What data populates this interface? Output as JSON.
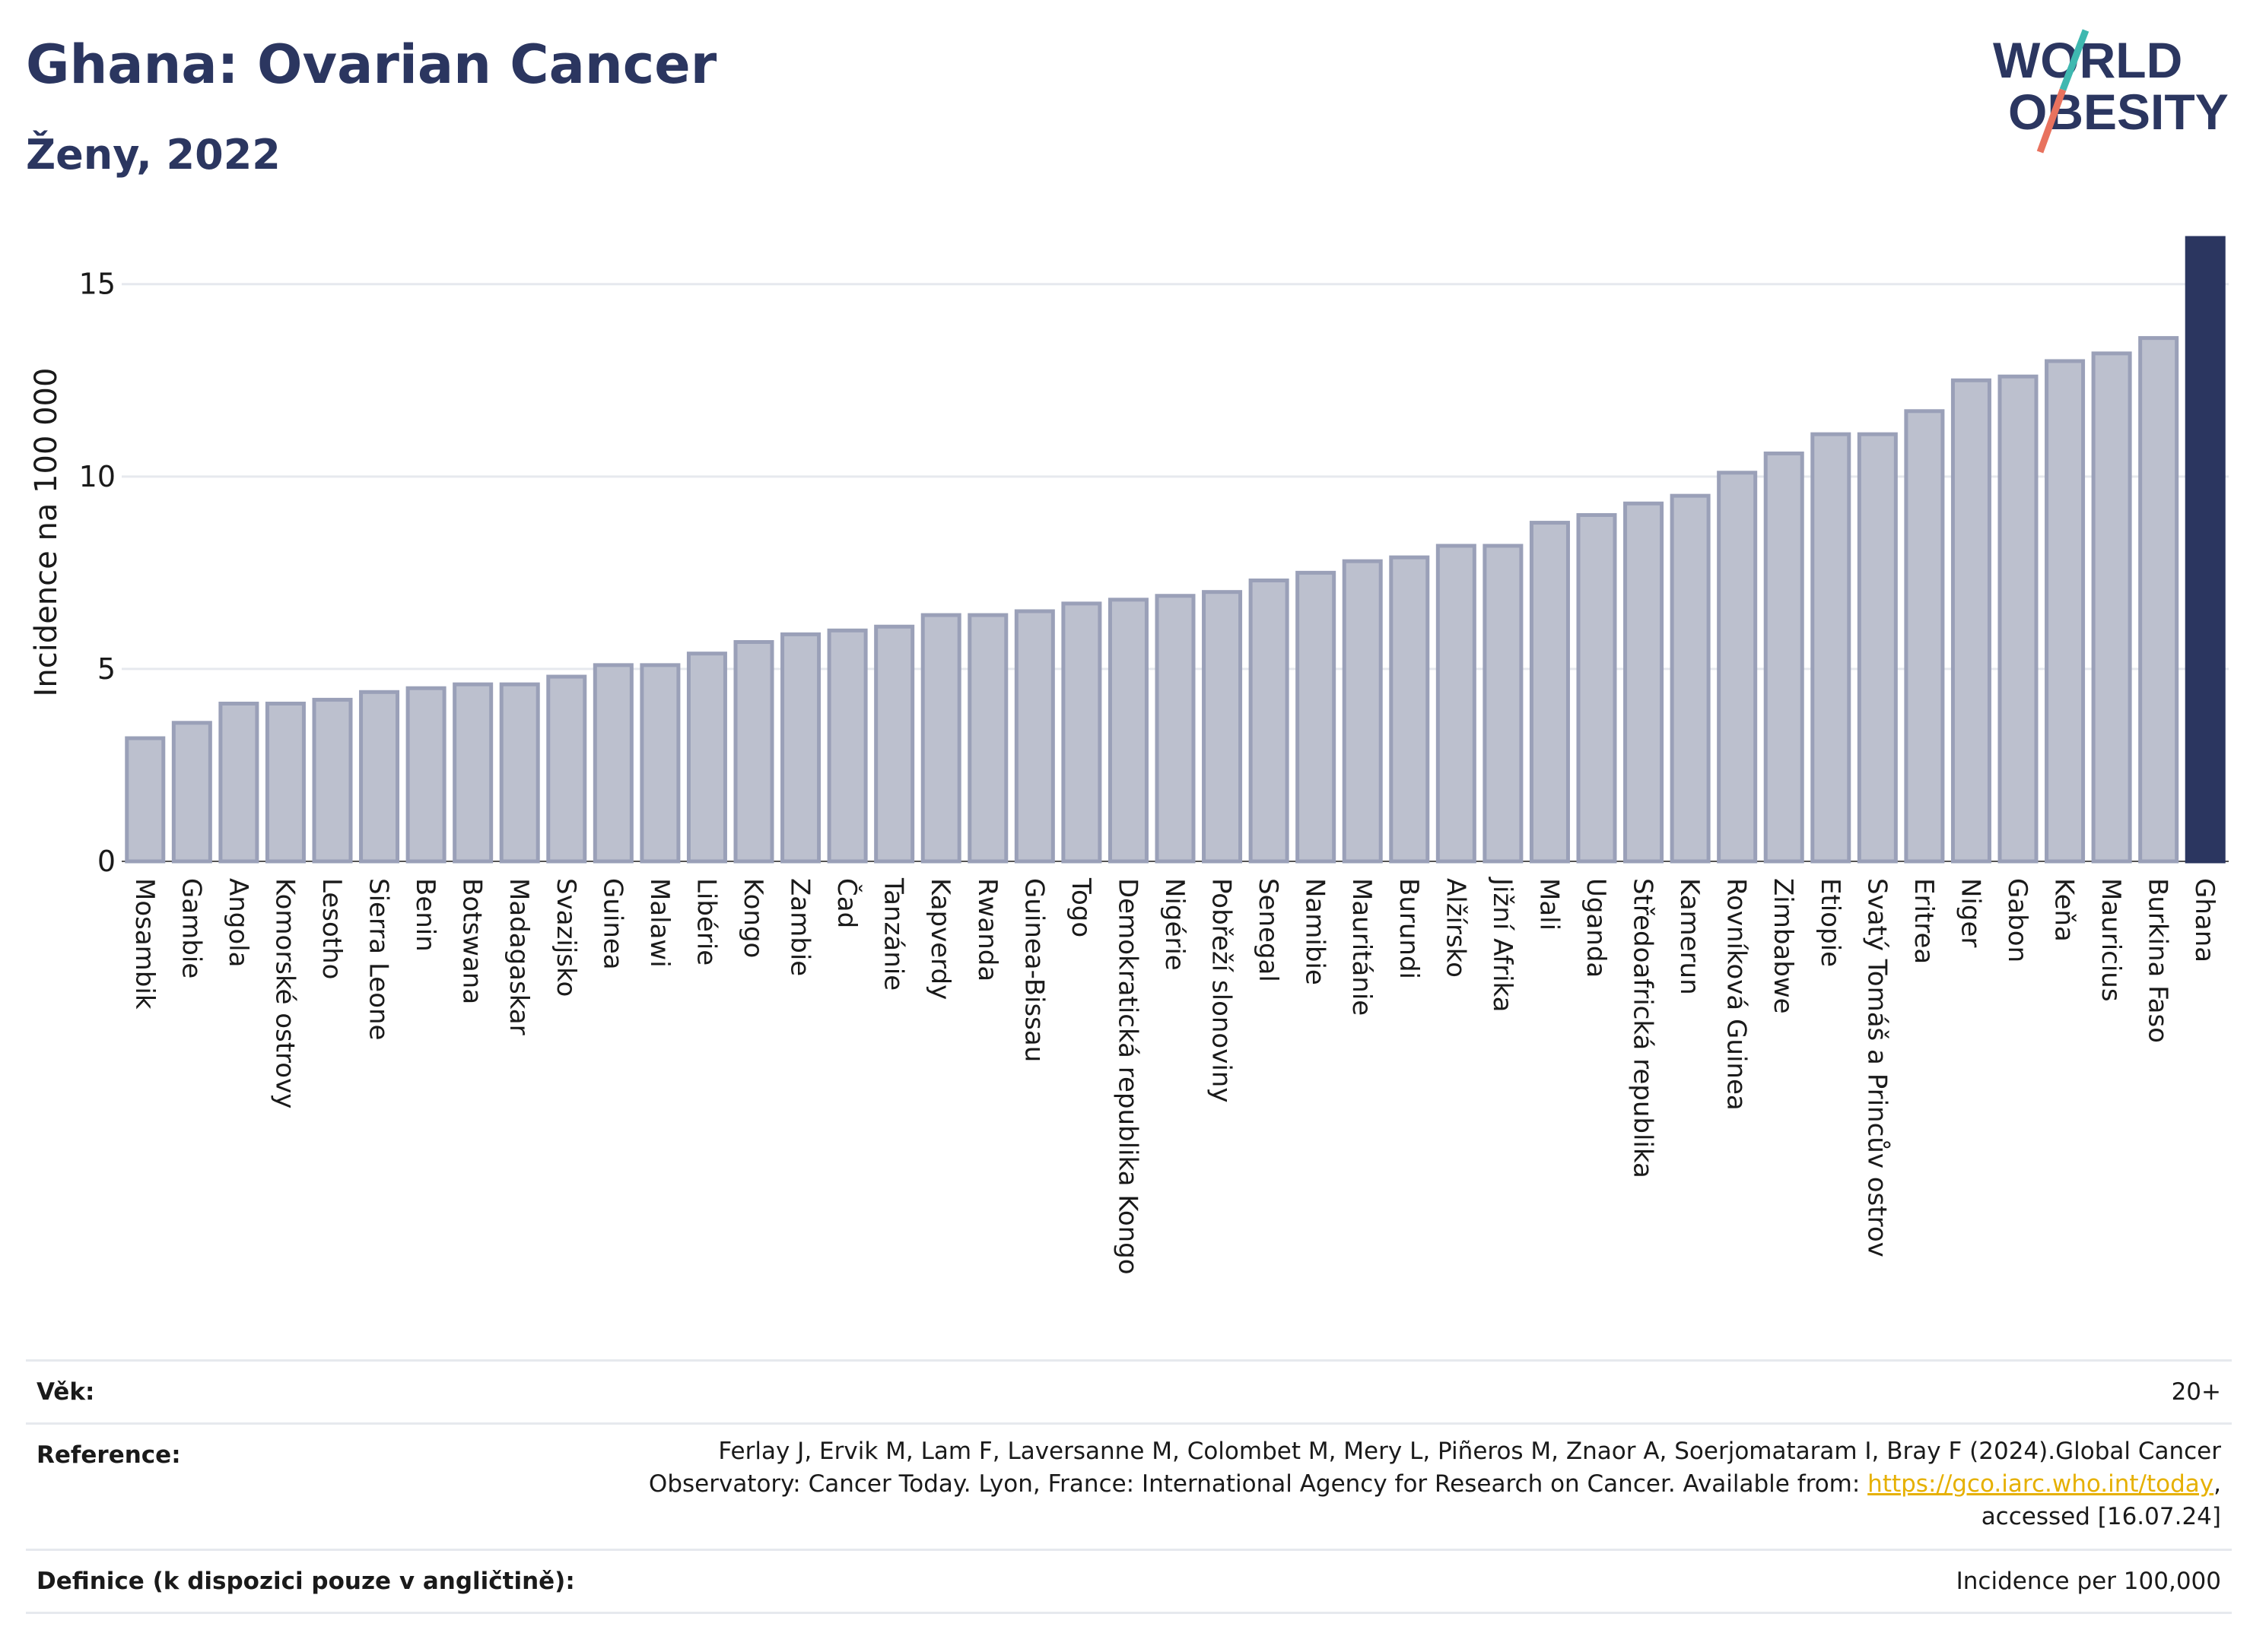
{
  "header": {
    "title": "Ghana: Ovarian Cancer",
    "subtitle": "Ženy, 2022"
  },
  "logo": {
    "line1": "WORLD",
    "line2": "OBESITY"
  },
  "colors": {
    "title": "#2b3660",
    "bar_default": "#bcc0ce",
    "bar_default_stroke": "#9aa0b8",
    "bar_highlight": "#2b3660",
    "grid": "#e6e9ee",
    "link": "#e6b000",
    "logo_teal": "#3fb8b0",
    "logo_coral": "#e8725e"
  },
  "chart_data": {
    "type": "bar",
    "ylabel": "Incidence na 100 000",
    "ylim": [
      0,
      16.2
    ],
    "yticks": [
      0,
      5,
      10,
      15
    ],
    "grid": true,
    "highlight": "Ghana",
    "categories": [
      "Mosambik",
      "Gambie",
      "Angola",
      "Komorské ostrovy",
      "Lesotho",
      "Sierra Leone",
      "Benin",
      "Botswana",
      "Madagaskar",
      "Svazijsko",
      "Guinea",
      "Malawi",
      "Libérie",
      "Kongo",
      "Zambie",
      "Čad",
      "Tanzánie",
      "Kapverdy",
      "Rwanda",
      "Guinea-Bissau",
      "Togo",
      "Demokratická republika Kongo",
      "Nigérie",
      "Pobřeží slonoviny",
      "Senegal",
      "Namibie",
      "Mauritánie",
      "Burundi",
      "Alžírsko",
      "Jižní Afrika",
      "Mali",
      "Uganda",
      "Středoafrická republika",
      "Kamerun",
      "Rovníková Guinea",
      "Zimbabwe",
      "Etiopie",
      "Svatý Tomáš a Princův ostrov",
      "Eritrea",
      "Niger",
      "Gabon",
      "Keňa",
      "Mauricius",
      "Burkina Faso",
      "Ghana"
    ],
    "values": [
      3.2,
      3.6,
      4.1,
      4.1,
      4.2,
      4.4,
      4.5,
      4.6,
      4.6,
      4.8,
      5.1,
      5.1,
      5.4,
      5.7,
      5.9,
      6.0,
      6.1,
      6.4,
      6.4,
      6.5,
      6.7,
      6.8,
      6.9,
      7.0,
      7.3,
      7.5,
      7.8,
      7.9,
      8.2,
      8.2,
      8.8,
      9.0,
      9.3,
      9.5,
      10.1,
      10.6,
      11.1,
      11.1,
      11.7,
      12.5,
      12.6,
      13.0,
      13.2,
      13.6,
      16.2
    ]
  },
  "footer": {
    "age_label": "Věk:",
    "age_value": "20+",
    "reference_label": "Reference:",
    "reference_line1": "Ferlay J, Ervik M, Lam F, Laversanne M, Colombet M, Mery L, Piñeros M, Znaor A, Soerjomataram I, Bray F (2024).Global Cancer",
    "reference_line2_pre": "Observatory: Cancer Today. Lyon, France: International Agency for Research on Cancer. Available from: ",
    "reference_link": "https://gco.iarc.who.int/today",
    "reference_line2_post": ",",
    "reference_line3": "accessed [16.07.24]",
    "definition_label": "Definice (k dispozici pouze v angličtině):",
    "definition_value": "Incidence per 100,000"
  }
}
